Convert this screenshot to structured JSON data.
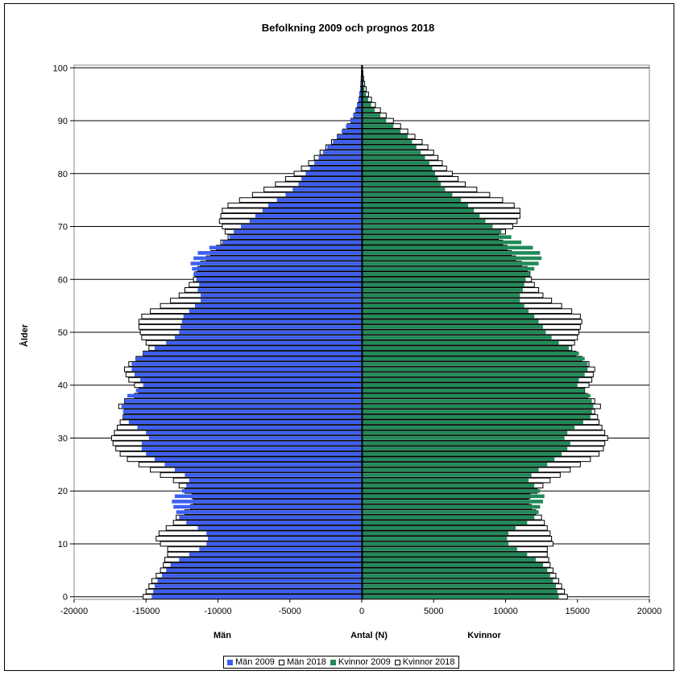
{
  "chart_data": {
    "type": "bar",
    "orientation": "horizontal",
    "subtype": "population-pyramid",
    "title": "Befolkning 2009 och prognos 2018",
    "xlabel": "Antal (N)",
    "ylabel": "Ålder",
    "side_labels": {
      "left": "Män",
      "right": "Kvinnor"
    },
    "xlim": [
      -20000,
      20000
    ],
    "ylim": [
      0,
      100
    ],
    "x_ticks": [
      "-20000",
      "-15000",
      "-10000",
      "-5000",
      "0",
      "5000",
      "10000",
      "15000",
      "20000"
    ],
    "y_ticks": [
      "0",
      "10",
      "20",
      "30",
      "40",
      "50",
      "60",
      "70",
      "80",
      "90",
      "100"
    ],
    "grid": {
      "horizontal": true,
      "vertical": false
    },
    "legend": "bottom",
    "colors": {
      "men_2009": "#3d5ff0",
      "women_2009": "#218a58",
      "outline": "#000000",
      "projection_fill": "#ffffff"
    },
    "ages": [
      0,
      1,
      2,
      3,
      4,
      5,
      6,
      7,
      8,
      9,
      10,
      11,
      12,
      13,
      14,
      15,
      16,
      17,
      18,
      19,
      20,
      21,
      22,
      23,
      24,
      25,
      26,
      27,
      28,
      29,
      30,
      31,
      32,
      33,
      34,
      35,
      36,
      37,
      38,
      39,
      40,
      41,
      42,
      43,
      44,
      45,
      46,
      47,
      48,
      49,
      50,
      51,
      52,
      53,
      54,
      55,
      56,
      57,
      58,
      59,
      60,
      61,
      62,
      63,
      64,
      65,
      66,
      67,
      68,
      69,
      70,
      71,
      72,
      73,
      74,
      75,
      76,
      77,
      78,
      79,
      80,
      81,
      82,
      83,
      84,
      85,
      86,
      87,
      88,
      89,
      90,
      91,
      92,
      93,
      94,
      95,
      96,
      97,
      98,
      99,
      100
    ],
    "series": [
      {
        "name": "Män 2009",
        "values": [
          -14600,
          -14500,
          -14400,
          -14200,
          -13900,
          -13600,
          -13300,
          -12700,
          -12000,
          -11300,
          -10800,
          -10700,
          -10800,
          -11400,
          -12200,
          -12700,
          -12900,
          -13100,
          -13200,
          -13000,
          -12500,
          -12200,
          -12000,
          -12300,
          -13000,
          -13700,
          -14400,
          -15000,
          -15300,
          -15300,
          -14800,
          -15000,
          -15600,
          -16200,
          -16600,
          -16600,
          -16700,
          -16500,
          -16300,
          -15700,
          -15200,
          -15400,
          -15800,
          -16000,
          -16000,
          -15700,
          -15200,
          -14400,
          -13600,
          -13000,
          -12700,
          -12600,
          -12500,
          -12400,
          -12000,
          -11600,
          -11200,
          -11200,
          -11400,
          -11300,
          -11500,
          -11700,
          -11800,
          -11900,
          -11700,
          -11400,
          -10600,
          -9700,
          -9200,
          -8900,
          -8400,
          -7800,
          -7400,
          -6900,
          -6500,
          -5900,
          -5300,
          -4800,
          -4400,
          -4200,
          -3900,
          -3600,
          -3300,
          -3000,
          -2700,
          -2400,
          -2000,
          -1700,
          -1400,
          -1100,
          -800,
          -600,
          -450,
          -330,
          -230,
          -160,
          -110,
          -70,
          -45,
          -30,
          -20
        ]
      },
      {
        "name": "Män 2018",
        "values": [
          -15200,
          -15000,
          -14800,
          -14600,
          -14300,
          -14000,
          -13800,
          -13700,
          -13500,
          -13500,
          -14000,
          -14300,
          -14100,
          -13600,
          -13100,
          -12900,
          -12300,
          -11900,
          -11700,
          -11800,
          -12300,
          -12700,
          -13100,
          -14000,
          -14700,
          -15500,
          -16300,
          -16800,
          -17100,
          -17300,
          -17400,
          -17200,
          -17000,
          -16800,
          -16600,
          -16500,
          -16900,
          -16500,
          -15800,
          -15500,
          -15800,
          -16200,
          -16400,
          -16500,
          -16200,
          -15700,
          -15200,
          -14800,
          -15000,
          -15300,
          -15400,
          -15500,
          -15500,
          -15300,
          -14700,
          -14000,
          -13300,
          -12700,
          -12300,
          -12000,
          -11700,
          -11600,
          -11400,
          -11200,
          -10800,
          -10500,
          -10100,
          -9800,
          -9300,
          -9500,
          -9700,
          -9900,
          -9800,
          -9700,
          -9300,
          -8500,
          -7600,
          -6800,
          -6000,
          -5300,
          -4700,
          -4200,
          -3700,
          -3300,
          -2900,
          -2500,
          -2100,
          -1700,
          -1300,
          -1000,
          -750,
          -550,
          -400,
          -290,
          -200,
          -140,
          -90,
          -60,
          -40,
          -25,
          -15
        ]
      },
      {
        "name": "Kvinnor 2009",
        "values": [
          13700,
          13600,
          13500,
          13300,
          13100,
          12900,
          12600,
          12100,
          11500,
          10800,
          10200,
          10100,
          10200,
          10700,
          11500,
          12000,
          12300,
          12400,
          12600,
          12700,
          12400,
          12000,
          11600,
          11800,
          12300,
          12900,
          13400,
          13900,
          14300,
          14500,
          14100,
          14300,
          14800,
          15400,
          15900,
          16000,
          16100,
          16000,
          15900,
          15500,
          15000,
          15100,
          15500,
          15700,
          15700,
          15500,
          15100,
          14400,
          13700,
          13200,
          12800,
          12600,
          12300,
          12000,
          11600,
          11300,
          11000,
          11000,
          11200,
          11300,
          11400,
          11700,
          12000,
          12300,
          12500,
          12400,
          11900,
          11100,
          10400,
          9700,
          9100,
          8600,
          8200,
          7800,
          7400,
          6900,
          6300,
          5800,
          5500,
          5300,
          5100,
          4900,
          4700,
          4400,
          4100,
          3800,
          3500,
          3200,
          2700,
          2200,
          1700,
          1300,
          900,
          650,
          450,
          300,
          190,
          120,
          80,
          50,
          30
        ]
      },
      {
        "name": "Kvinnor 2018",
        "values": [
          14300,
          14100,
          13900,
          13700,
          13500,
          13300,
          13100,
          13000,
          12900,
          12900,
          13300,
          13200,
          13100,
          12900,
          12700,
          12500,
          12100,
          11800,
          11600,
          11700,
          12200,
          12600,
          13100,
          13800,
          14500,
          15200,
          15900,
          16500,
          16800,
          16900,
          17100,
          16900,
          16700,
          16500,
          16400,
          16200,
          16600,
          16200,
          15700,
          15500,
          15800,
          16000,
          16100,
          16200,
          15800,
          15300,
          14900,
          14600,
          14800,
          15000,
          15100,
          15200,
          15300,
          15200,
          14600,
          13900,
          13200,
          12600,
          12300,
          12000,
          11800,
          11700,
          11500,
          11100,
          10700,
          10400,
          10100,
          9800,
          9500,
          10000,
          10500,
          10800,
          11000,
          11000,
          10600,
          9800,
          8900,
          8000,
          7200,
          6700,
          6300,
          5900,
          5600,
          5300,
          5000,
          4600,
          4200,
          3700,
          3200,
          2700,
          2200,
          1700,
          1300,
          950,
          680,
          470,
          310,
          200,
          130,
          80,
          45
        ]
      }
    ]
  }
}
